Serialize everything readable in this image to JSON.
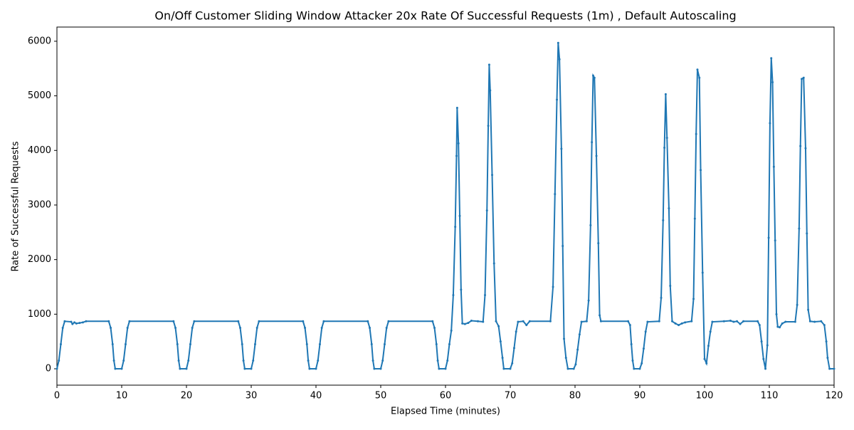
{
  "chart_data": {
    "type": "line",
    "title": "On/Off Customer Sliding Window Attacker 20x Rate Of Successful Requests (1m) , Default Autoscaling",
    "x_label": "Elapsed Time (minutes)",
    "y_label": "Rate of Successful Requests",
    "xlim": [
      0,
      120
    ],
    "ylim": [
      -300,
      6260
    ],
    "xticks": [
      0,
      10,
      20,
      30,
      40,
      50,
      60,
      70,
      80,
      90,
      100,
      110,
      120
    ],
    "yticks": [
      0,
      1000,
      2000,
      3000,
      4000,
      5000,
      6000
    ],
    "x": [
      0,
      0.3,
      0.6,
      0.9,
      1.2,
      2.2,
      2.4,
      2.7,
      3,
      3.5,
      4,
      4.5,
      8,
      8.3,
      8.6,
      8.8,
      9,
      10,
      10.3,
      10.6,
      10.9,
      11.2,
      18,
      18.3,
      18.6,
      18.8,
      19,
      20,
      20.3,
      20.6,
      20.9,
      21.2,
      28,
      28.3,
      28.6,
      28.8,
      29,
      30,
      30.3,
      30.6,
      30.9,
      31.2,
      38,
      38.3,
      38.6,
      38.8,
      39,
      40,
      40.3,
      40.6,
      40.9,
      41.2,
      48,
      48.3,
      48.6,
      48.8,
      49,
      50,
      50.3,
      50.6,
      50.9,
      51.2,
      58,
      58.3,
      58.6,
      58.8,
      59,
      60,
      60.3,
      60.6,
      60.9,
      61.2,
      61.5,
      61.7,
      61.8,
      62,
      62.2,
      62.4,
      62.6,
      63,
      63.5,
      64,
      65,
      65.8,
      66.1,
      66.4,
      66.6,
      66.75,
      66.9,
      67.2,
      67.5,
      67.8,
      68.2,
      68.5,
      68.8,
      69,
      70,
      70.3,
      70.6,
      70.9,
      71.2,
      72,
      72.5,
      73,
      76.2,
      76.6,
      76.9,
      77.2,
      77.4,
      77.6,
      77.9,
      78.1,
      78.3,
      78.6,
      78.9,
      79.8,
      80.1,
      80.4,
      80.7,
      81,
      81.8,
      82.1,
      82.4,
      82.6,
      82.8,
      83,
      83.3,
      83.6,
      83.8,
      84,
      88.2,
      88.5,
      88.7,
      88.9,
      89.1,
      90,
      90.3,
      90.6,
      90.9,
      91.2,
      93,
      93.3,
      93.6,
      93.8,
      94,
      94.2,
      94.5,
      94.7,
      95,
      95.5,
      96,
      96.5,
      97,
      98,
      98.3,
      98.5,
      98.7,
      98.9,
      99.2,
      99.4,
      99.7,
      100,
      100.3,
      100.6,
      100.9,
      101.2,
      103,
      104,
      104.5,
      105,
      105.5,
      106,
      108.2,
      108.5,
      108.8,
      109.1,
      109.4,
      109.7,
      109.9,
      110.1,
      110.3,
      110.5,
      110.7,
      110.9,
      111.1,
      111.3,
      111.6,
      112,
      112.5,
      114,
      114.3,
      114.6,
      114.8,
      115,
      115.3,
      115.6,
      115.8,
      116,
      116.3,
      117,
      118,
      118.5,
      118.8,
      119,
      119.3,
      120
    ],
    "series": [
      {
        "color": "#1f77b4",
        "values": [
          0,
          150,
          450,
          750,
          870,
          860,
          820,
          850,
          830,
          840,
          850,
          870,
          870,
          750,
          450,
          150,
          0,
          0,
          150,
          450,
          750,
          870,
          870,
          750,
          450,
          150,
          0,
          0,
          150,
          450,
          750,
          870,
          870,
          750,
          450,
          150,
          0,
          0,
          150,
          450,
          750,
          870,
          870,
          750,
          450,
          150,
          0,
          0,
          150,
          450,
          750,
          870,
          870,
          750,
          450,
          150,
          0,
          0,
          150,
          450,
          750,
          870,
          870,
          750,
          450,
          150,
          0,
          0,
          150,
          450,
          700,
          1350,
          2600,
          3900,
          4780,
          4130,
          2800,
          1450,
          830,
          820,
          840,
          880,
          870,
          860,
          1350,
          2900,
          4450,
          5570,
          5100,
          3550,
          1930,
          870,
          780,
          500,
          200,
          0,
          0,
          100,
          380,
          680,
          860,
          870,
          800,
          870,
          870,
          1500,
          3200,
          4930,
          5970,
          5670,
          4030,
          2250,
          550,
          200,
          0,
          0,
          80,
          350,
          630,
          860,
          870,
          1250,
          2630,
          4150,
          5370,
          5330,
          3900,
          2300,
          980,
          870,
          870,
          800,
          450,
          150,
          0,
          0,
          100,
          370,
          680,
          860,
          870,
          1300,
          2720,
          4050,
          5030,
          4230,
          2940,
          1520,
          870,
          830,
          800,
          830,
          850,
          870,
          1280,
          2750,
          4300,
          5480,
          5330,
          3640,
          1760,
          180,
          100,
          420,
          680,
          860,
          870,
          880,
          860,
          870,
          820,
          870,
          870,
          800,
          500,
          180,
          0,
          430,
          2400,
          4500,
          5690,
          5250,
          3700,
          2350,
          1000,
          770,
          760,
          830,
          860,
          860,
          1170,
          2570,
          4080,
          5310,
          5330,
          4040,
          2480,
          1080,
          870,
          860,
          870,
          800,
          500,
          200,
          0,
          0
        ]
      }
    ]
  }
}
